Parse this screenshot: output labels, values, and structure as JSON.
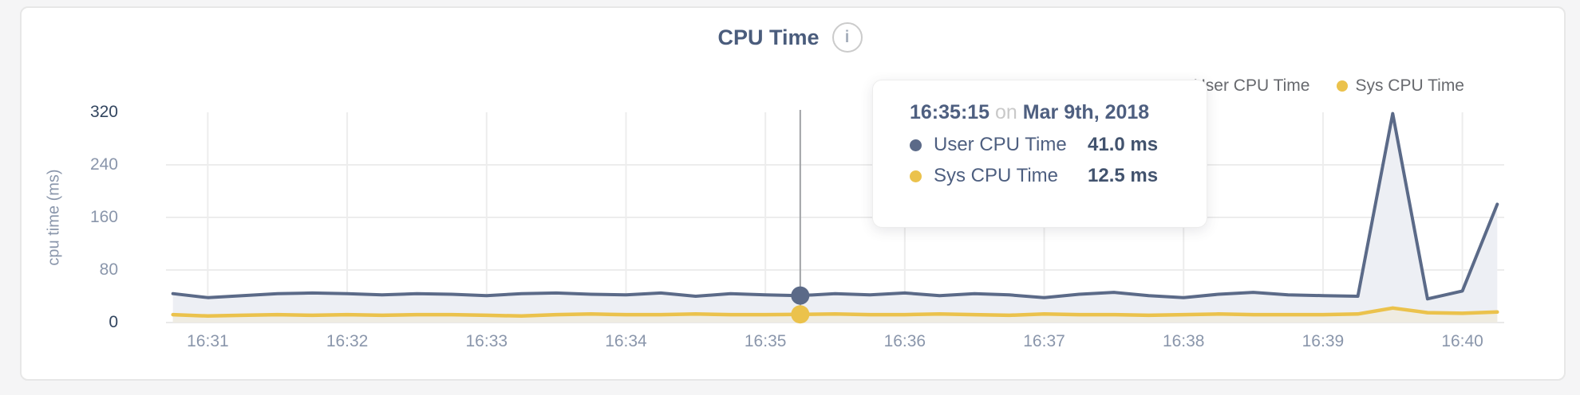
{
  "colors": {
    "user_series": "#5b6a88",
    "sys_series": "#ebc24c",
    "grid": "#ededed",
    "baseline": "#e9e9e9",
    "crosshair": "#9fa2a5",
    "tick_minor": "#8a96ab",
    "tick_major": "#32455f"
  },
  "header": {
    "title": "CPU Time",
    "info_icon_glyph": "i"
  },
  "legend": {
    "items": [
      {
        "label": "User CPU Time",
        "color": "#5b6a88"
      },
      {
        "label": "Sys CPU Time",
        "color": "#ebc24c"
      }
    ]
  },
  "tooltip": {
    "time": "16:35:15",
    "connector": "on",
    "date": "Mar 9th, 2018",
    "rows": [
      {
        "label": "User CPU Time",
        "value": "41.0 ms",
        "color": "#5b6a88"
      },
      {
        "label": "Sys CPU Time",
        "value": "12.5 ms",
        "color": "#ebc24c"
      }
    ]
  },
  "chart_data": {
    "type": "area",
    "title": "CPU Time",
    "ylabel": "cpu time (ms)",
    "ylim": [
      0,
      320
    ],
    "y_ticks": [
      0,
      80,
      160,
      240,
      320
    ],
    "x_ticks": [
      "16:31",
      "16:32",
      "16:33",
      "16:34",
      "16:35",
      "16:36",
      "16:37",
      "16:38",
      "16:39",
      "16:40"
    ],
    "xlim": [
      "16:30:42",
      "16:40:18"
    ],
    "grid": true,
    "legend_position": "top-right",
    "sample_interval_seconds": 15,
    "times": [
      "16:30:45",
      "16:31:00",
      "16:31:15",
      "16:31:30",
      "16:31:45",
      "16:32:00",
      "16:32:15",
      "16:32:30",
      "16:32:45",
      "16:33:00",
      "16:33:15",
      "16:33:30",
      "16:33:45",
      "16:34:00",
      "16:34:15",
      "16:34:30",
      "16:34:45",
      "16:35:00",
      "16:35:15",
      "16:35:30",
      "16:35:45",
      "16:36:00",
      "16:36:15",
      "16:36:30",
      "16:36:45",
      "16:37:00",
      "16:37:15",
      "16:37:30",
      "16:37:45",
      "16:38:00",
      "16:38:15",
      "16:38:30",
      "16:38:45",
      "16:39:00",
      "16:39:15",
      "16:39:30",
      "16:39:45",
      "16:40:00",
      "16:40:15"
    ],
    "series": [
      {
        "name": "User CPU Time",
        "unit": "ms",
        "color": "#5b6a88",
        "fill": "#edeff4",
        "values": [
          44,
          38,
          41,
          44,
          45,
          44,
          42,
          44,
          43,
          41,
          44,
          45,
          43,
          42,
          45,
          40,
          44,
          42,
          41,
          44,
          42,
          45,
          41,
          44,
          42,
          38,
          43,
          46,
          41,
          38,
          43,
          46,
          42,
          41,
          40,
          318,
          36,
          48,
          180
        ]
      },
      {
        "name": "Sys CPU Time",
        "unit": "ms",
        "color": "#ebc24c",
        "fill": "#efece2",
        "values": [
          12,
          10,
          11,
          12,
          11,
          12,
          11,
          12,
          12,
          11,
          10,
          12,
          13,
          12,
          12,
          13,
          12,
          12,
          12.5,
          13,
          12,
          12,
          13,
          12,
          11,
          13,
          12,
          12,
          11,
          12,
          13,
          12,
          12,
          12,
          13,
          22,
          15,
          14,
          16
        ]
      }
    ],
    "highlight": {
      "index": 18,
      "time": "16:35:15",
      "date": "Mar 9th, 2018",
      "values": [
        41.0,
        12.5
      ]
    }
  }
}
